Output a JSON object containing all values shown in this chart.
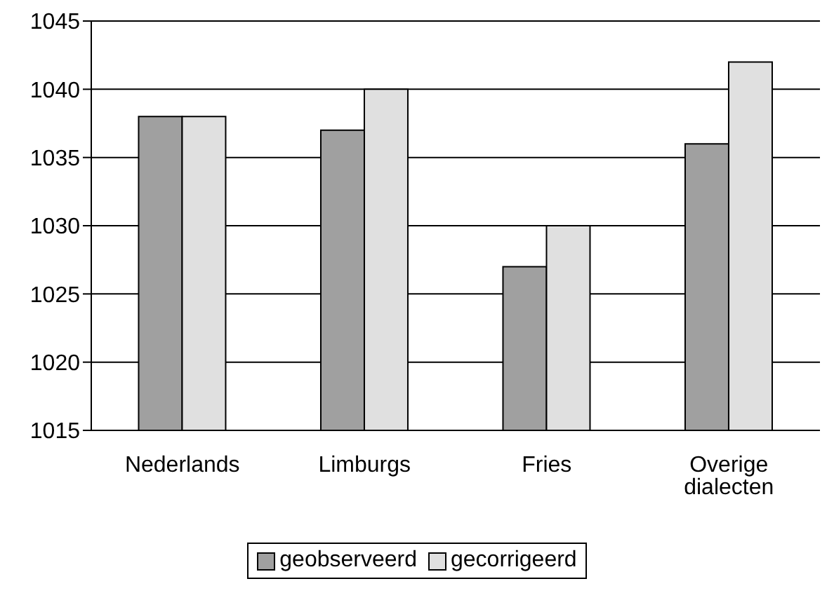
{
  "chart_data": {
    "type": "bar",
    "categories": [
      "Nederlands",
      "Limburgs",
      "Fries",
      "Overige dialecten"
    ],
    "series": [
      {
        "name": "geobserveerd",
        "color": "#a0a0a0",
        "values": [
          1038,
          1037,
          1027,
          1036
        ]
      },
      {
        "name": "gecorrigeerd",
        "color": "#e0e0e0",
        "values": [
          1038,
          1040,
          1030,
          1042
        ]
      }
    ],
    "ylim": [
      1015,
      1045
    ],
    "yticks": [
      1015,
      1020,
      1025,
      1030,
      1035,
      1040,
      1045
    ],
    "grid": "y",
    "legend": "bottom"
  }
}
